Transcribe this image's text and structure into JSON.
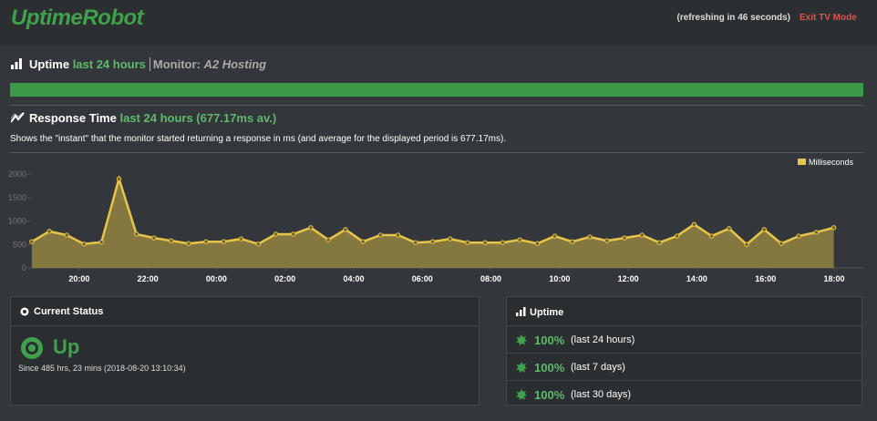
{
  "header": {
    "logo": "UptimeRobot",
    "refreshing": "(refreshing in 46 seconds)",
    "exit": "Exit TV Mode"
  },
  "uptime_section": {
    "title": "Uptime",
    "period": "last 24 hours",
    "monitor_label": "Monitor:",
    "monitor_name": "A2 Hosting"
  },
  "response_section": {
    "title": "Response Time",
    "period": "last 24 hours (677.17ms av.)",
    "description": "Shows the \"instant\" that the monitor started returning a response in ms (and average for the displayed period is 677.17ms)."
  },
  "chart_data": {
    "type": "area",
    "x": [
      18.62,
      19.13,
      19.64,
      20.14,
      20.65,
      21.16,
      21.67,
      22.18,
      22.68,
      23.19,
      23.7,
      24.21,
      24.72,
      25.22,
      25.73,
      26.24,
      26.75,
      27.26,
      27.76,
      28.27,
      28.78,
      29.29,
      29.8,
      30.3,
      30.81,
      31.32,
      31.83,
      32.34,
      32.84,
      33.35,
      33.86,
      34.37,
      34.88,
      35.38,
      35.89,
      36.4,
      36.91,
      37.42,
      37.92,
      38.43,
      38.94,
      39.45,
      39.96,
      40.46,
      40.97,
      41.48,
      41.99
    ],
    "series": [
      {
        "name": "Milliseconds",
        "color": "#e8c547",
        "values": [
          560,
          780,
          700,
          510,
          550,
          1900,
          720,
          640,
          580,
          520,
          560,
          560,
          620,
          510,
          720,
          720,
          860,
          600,
          820,
          560,
          700,
          700,
          540,
          560,
          620,
          540,
          540,
          540,
          600,
          520,
          680,
          560,
          660,
          580,
          640,
          700,
          540,
          680,
          930,
          680,
          840,
          500,
          820,
          520,
          680,
          760,
          860
        ]
      }
    ],
    "xlim": [
      18.57,
      42.85
    ],
    "xticks": [
      {
        "value": 20,
        "label": "20:00"
      },
      {
        "value": 22,
        "label": "22:00"
      },
      {
        "value": 24,
        "label": "00:00"
      },
      {
        "value": 26,
        "label": "02:00"
      },
      {
        "value": 28,
        "label": "04:00"
      },
      {
        "value": 30,
        "label": "06:00"
      },
      {
        "value": 32,
        "label": "08:00"
      },
      {
        "value": 34,
        "label": "10:00"
      },
      {
        "value": 36,
        "label": "12:00"
      },
      {
        "value": 38,
        "label": "14:00"
      },
      {
        "value": 40,
        "label": "16:00"
      },
      {
        "value": 42,
        "label": "18:00"
      }
    ],
    "ylim": [
      0,
      2100
    ],
    "yticks": [
      0,
      500,
      1000,
      1500,
      2000
    ],
    "legend": "top-right"
  },
  "current_status": {
    "title": "Current Status",
    "status": "Up",
    "since": "Since 485 hrs, 23 mins (2018-08-20 13:10:34)"
  },
  "uptime_panel": {
    "title": "Uptime",
    "rows": [
      {
        "percent": "100%",
        "period": "(last 24 hours)"
      },
      {
        "percent": "100%",
        "period": "(last 7 days)"
      },
      {
        "percent": "100%",
        "period": "(last 30 days)"
      }
    ]
  }
}
